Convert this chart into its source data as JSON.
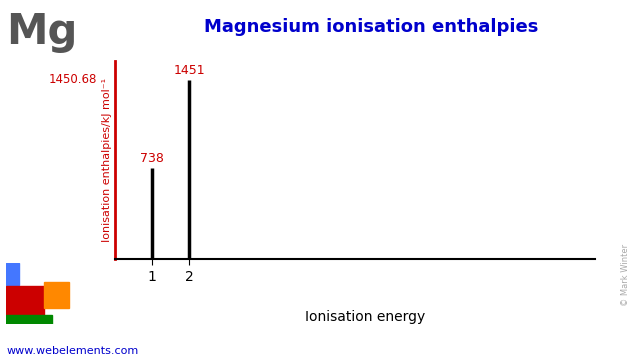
{
  "title": "Magnesium ionisation enthalpies",
  "element_symbol": "Mg",
  "ylabel": "Ionisation enthalpies/kJ mol⁻¹",
  "xlabel": "Ionisation energy",
  "ionisation_numbers": [
    1,
    2
  ],
  "ionisation_values": [
    738,
    1451
  ],
  "ymax": 1600,
  "yaxis_label_value": "1450.68",
  "bar_color": "#000000",
  "axis_color": "#cc0000",
  "title_color": "#0000cc",
  "element_color": "#555555",
  "annotation_color": "#cc0000",
  "website": "www.webelements.com",
  "website_color": "#0000cc",
  "copyright_text": "© Mark Winter",
  "background_color": "#ffffff",
  "xlim_max": 13
}
